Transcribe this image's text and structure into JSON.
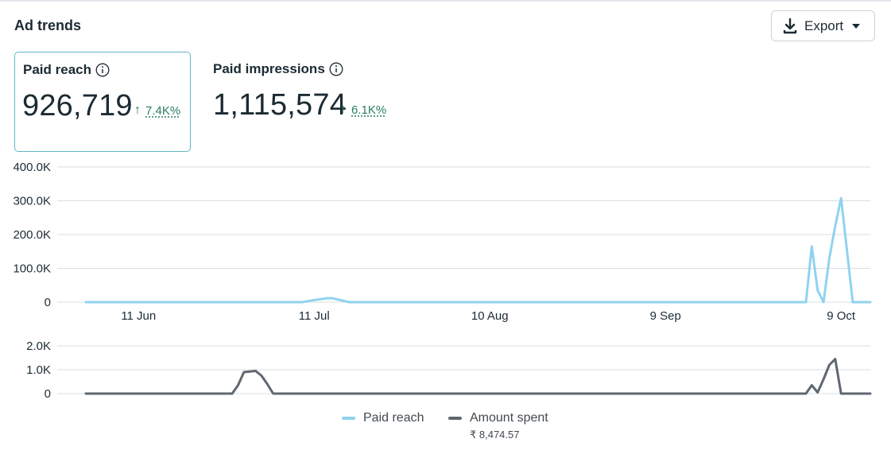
{
  "header": {
    "title": "Ad trends",
    "export_label": "Export"
  },
  "metrics": [
    {
      "label": "Paid reach",
      "value": "926,719",
      "change": "7.4K%",
      "selected": true
    },
    {
      "label": "Paid impressions",
      "value": "1,115,574",
      "change": "6.1K%",
      "selected": false
    }
  ],
  "legend": {
    "items": [
      {
        "label": "Paid reach",
        "color": "#8fd3ef"
      },
      {
        "label": "Amount spent",
        "color": "#606770",
        "sub": "₹ 8,474.57"
      }
    ]
  },
  "colors": {
    "reach": "#8fd3ef",
    "spend": "#606770",
    "grid": "#dadde1",
    "positive": "#2a7d5f",
    "selected_border": "#5fb7c4"
  },
  "chart_data": [
    {
      "type": "line",
      "series": [
        {
          "name": "Paid reach",
          "x": [
            0,
            37,
            39,
            41,
            42,
            45,
            123,
            124,
            125,
            126,
            127,
            128,
            129,
            131
          ],
          "y": [
            0,
            0,
            6000,
            11000,
            12000,
            0,
            0,
            165000,
            35000,
            0,
            130000,
            225000,
            308000,
            0
          ]
        }
      ],
      "x_range": [
        0,
        134
      ],
      "ylim": [
        0,
        400000
      ],
      "yticks": [
        "0",
        "100.0K",
        "200.0K",
        "300.0K",
        "400.0K"
      ],
      "ytick_values": [
        0,
        100000,
        200000,
        300000,
        400000
      ],
      "xticks": [
        "11 Jun",
        "11 Jul",
        "10 Aug",
        "9 Sep",
        "9 Oct"
      ],
      "xtick_values": [
        9,
        39,
        69,
        99,
        129
      ],
      "grid": true
    },
    {
      "type": "line",
      "series": [
        {
          "name": "Amount spent",
          "x": [
            0,
            25,
            26,
            27,
            29,
            30,
            31,
            32,
            123,
            124,
            125,
            126,
            127,
            128,
            129,
            131
          ],
          "y": [
            0,
            0,
            350,
            900,
            950,
            750,
            400,
            0,
            0,
            350,
            50,
            600,
            1200,
            1450,
            0,
            0
          ]
        }
      ],
      "x_range": [
        0,
        134
      ],
      "ylim": [
        0,
        2000
      ],
      "yticks": [
        "0",
        "1.0K",
        "2.0K"
      ],
      "ytick_values": [
        0,
        1000,
        2000
      ],
      "grid": true
    }
  ]
}
